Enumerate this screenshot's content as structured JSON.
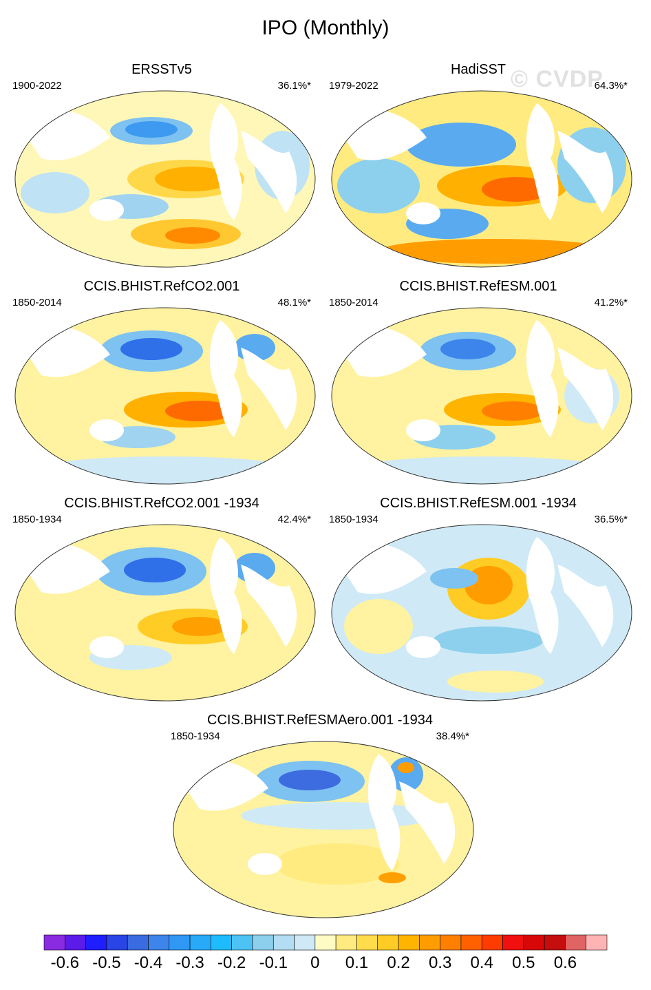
{
  "title": "IPO (Monthly)",
  "watermark": "© CVDP",
  "panels": [
    {
      "title": "ERSSTv5",
      "period": "1900-2022",
      "variance": "36.1%*"
    },
    {
      "title": "HadiSST",
      "period": "1979-2022",
      "variance": "64.3%*"
    },
    {
      "title": "CCIS.BHIST.RefCO2.001",
      "period": "1850-2014",
      "variance": "48.1%*"
    },
    {
      "title": "CCIS.BHIST.RefESM.001",
      "period": "1850-2014",
      "variance": "41.2%*"
    },
    {
      "title": "CCIS.BHIST.RefCO2.001 -1934",
      "period": "1850-1934",
      "variance": "42.4%*"
    },
    {
      "title": "CCIS.BHIST.RefESM.001 -1934",
      "period": "1850-1934",
      "variance": "36.5%*"
    },
    {
      "title": "CCIS.BHIST.RefESMAero.001 -1934",
      "period": "1850-1934",
      "variance": "38.4%*"
    }
  ],
  "colorbar": {
    "colors": [
      "#8a2be2",
      "#5b1be8",
      "#1e1eff",
      "#2a45e6",
      "#3a6be0",
      "#3d85eb",
      "#2f98f5",
      "#29aaf8",
      "#1ebcff",
      "#4cc3f4",
      "#8dd0ee",
      "#b3ddf2",
      "#cfeaf6",
      "#fffbc4",
      "#ffeb80",
      "#ffdd4a",
      "#ffcc26",
      "#ffb400",
      "#ff9c00",
      "#ff8000",
      "#ff6000",
      "#ff3c00",
      "#f01010",
      "#d80808",
      "#c40e0e",
      "#e06464",
      "#ffb4b4"
    ],
    "labels": [
      "-0.6",
      "-0.5",
      "-0.4",
      "-0.3",
      "-0.2",
      "-0.1",
      "0",
      "0.1",
      "0.2",
      "0.3",
      "0.4",
      "0.5",
      "0.6"
    ]
  }
}
